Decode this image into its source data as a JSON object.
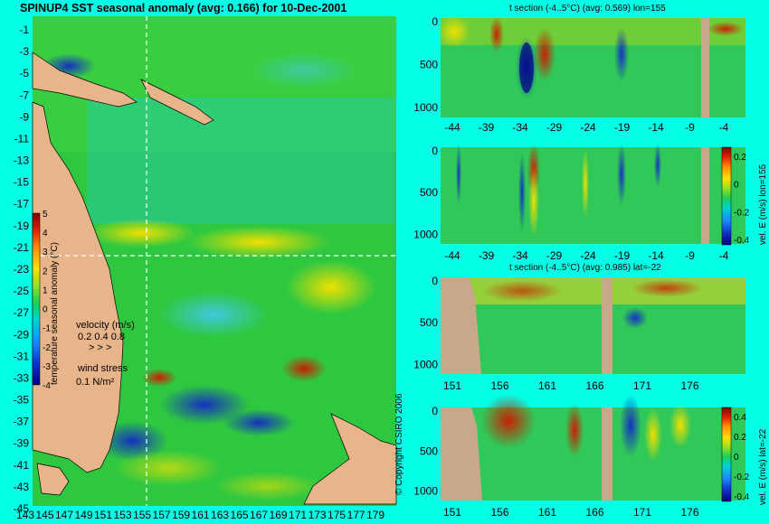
{
  "title": "SPINUP4 SST seasonal anomaly (avg: 0.166) for 10-Dec-2001",
  "copyright": "© Copyright CSIRO 2006",
  "colors": {
    "background": "#03ffe6",
    "land": "#e8b48a",
    "section_land": "#c8a88a"
  },
  "chart_data": [
    {
      "type": "heatmap",
      "name": "map",
      "title": "SPINUP4 SST seasonal anomaly (avg: 0.166) for 10-Dec-2001",
      "y_ticks": [
        "-1",
        "-3",
        "-5",
        "-7",
        "-9",
        "-11",
        "-13",
        "-15",
        "-17",
        "-19",
        "-21",
        "-23",
        "-25",
        "-27",
        "-29",
        "-31",
        "-33",
        "-35",
        "-37",
        "-39",
        "-41",
        "-43",
        "-45"
      ],
      "x_ticks": [
        "143",
        "145",
        "147",
        "149",
        "151",
        "153",
        "155",
        "157",
        "159",
        "161",
        "163",
        "165",
        "167",
        "169",
        "171",
        "173",
        "175",
        "177",
        "179"
      ],
      "colorbar": {
        "label": "temperature seasonal anomaly (°C)",
        "ticks": [
          "5",
          "4",
          "3",
          "2",
          "1",
          "0",
          "-1",
          "-2",
          "-3",
          "-4"
        ],
        "range": [
          -4,
          5
        ]
      },
      "velocity_legend": {
        "title": "velocity (m/s)",
        "values": "0.2 0.4 0.8"
      },
      "wind_legend": {
        "title": "wind stress",
        "value": "0.1 N/m²"
      },
      "crosshair": {
        "lon": 155,
        "lat": -22
      }
    },
    {
      "type": "heatmap",
      "name": "section-1",
      "title": "t section (-4..5°C) (avg: 0.569) lon=155",
      "y_ticks": [
        "0",
        "500",
        "1000"
      ],
      "x_ticks": [
        "-44",
        "-39",
        "-34",
        "-29",
        "-24",
        "-19",
        "-14",
        "-9",
        "-4"
      ]
    },
    {
      "type": "heatmap",
      "name": "section-2",
      "y_ticks": [
        "0",
        "500",
        "1000"
      ],
      "x_ticks": [
        "-44",
        "-39",
        "-34",
        "-29",
        "-24",
        "-19",
        "-14",
        "-9",
        "-4"
      ],
      "colorbar": {
        "label": "vel. E (m/s) lon=155",
        "ticks": [
          "0.2",
          "0",
          "-0.2",
          "-0.4"
        ]
      }
    },
    {
      "type": "heatmap",
      "name": "section-3",
      "title": "t section (-4..5°C) (avg: 0.985) lat=-22",
      "y_ticks": [
        "0",
        "500",
        "1000"
      ],
      "x_ticks": [
        "151",
        "156",
        "161",
        "166",
        "171",
        "176"
      ]
    },
    {
      "type": "heatmap",
      "name": "section-4",
      "y_ticks": [
        "0",
        "500",
        "1000"
      ],
      "x_ticks": [
        "151",
        "156",
        "161",
        "166",
        "171",
        "176"
      ],
      "colorbar": {
        "label": "vel. E (m/s) lat=-22",
        "ticks": [
          "0.4",
          "0.2",
          "0",
          "-0.2",
          "-0.4"
        ]
      }
    }
  ]
}
